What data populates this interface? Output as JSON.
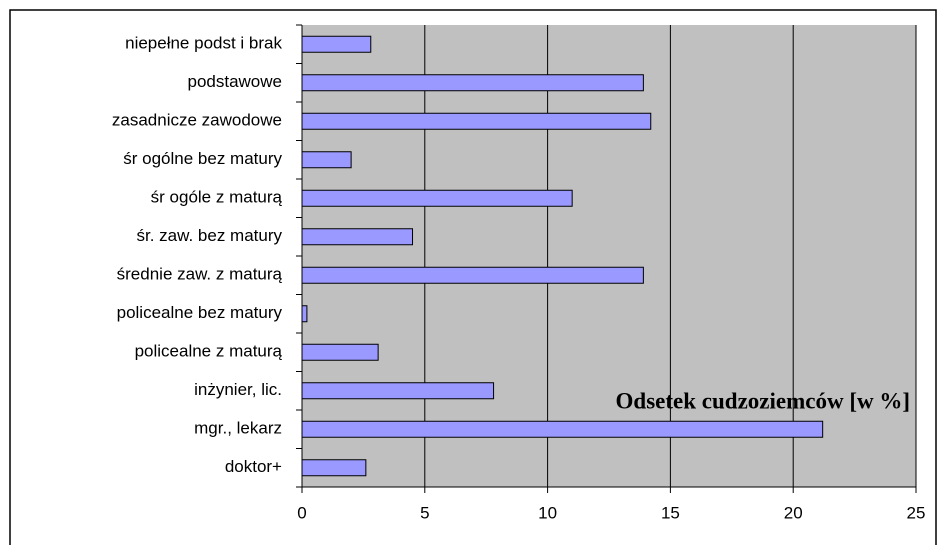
{
  "chart_data": {
    "type": "bar",
    "orientation": "horizontal",
    "x_label": "Odsetek cudzoziemców [w %]",
    "categories": [
      "niepełne podst i brak",
      "podstawowe",
      "zasadnicze zawodowe",
      "śr ogólne bez matury",
      "śr ogóle z maturą",
      "śr. zaw. bez matury",
      "średnie zaw. z maturą",
      "policealne bez matury",
      "policealne z maturą",
      "inżynier, lic.",
      "mgr., lekarz",
      "doktor+"
    ],
    "values": [
      2.8,
      13.9,
      14.2,
      2.0,
      11.0,
      4.5,
      13.9,
      0.2,
      3.1,
      7.8,
      21.2,
      2.6
    ],
    "color": "#9999ff",
    "xlim": [
      0,
      25
    ],
    "xticks": [
      0,
      5,
      10,
      15,
      20,
      25
    ],
    "grid": true
  }
}
